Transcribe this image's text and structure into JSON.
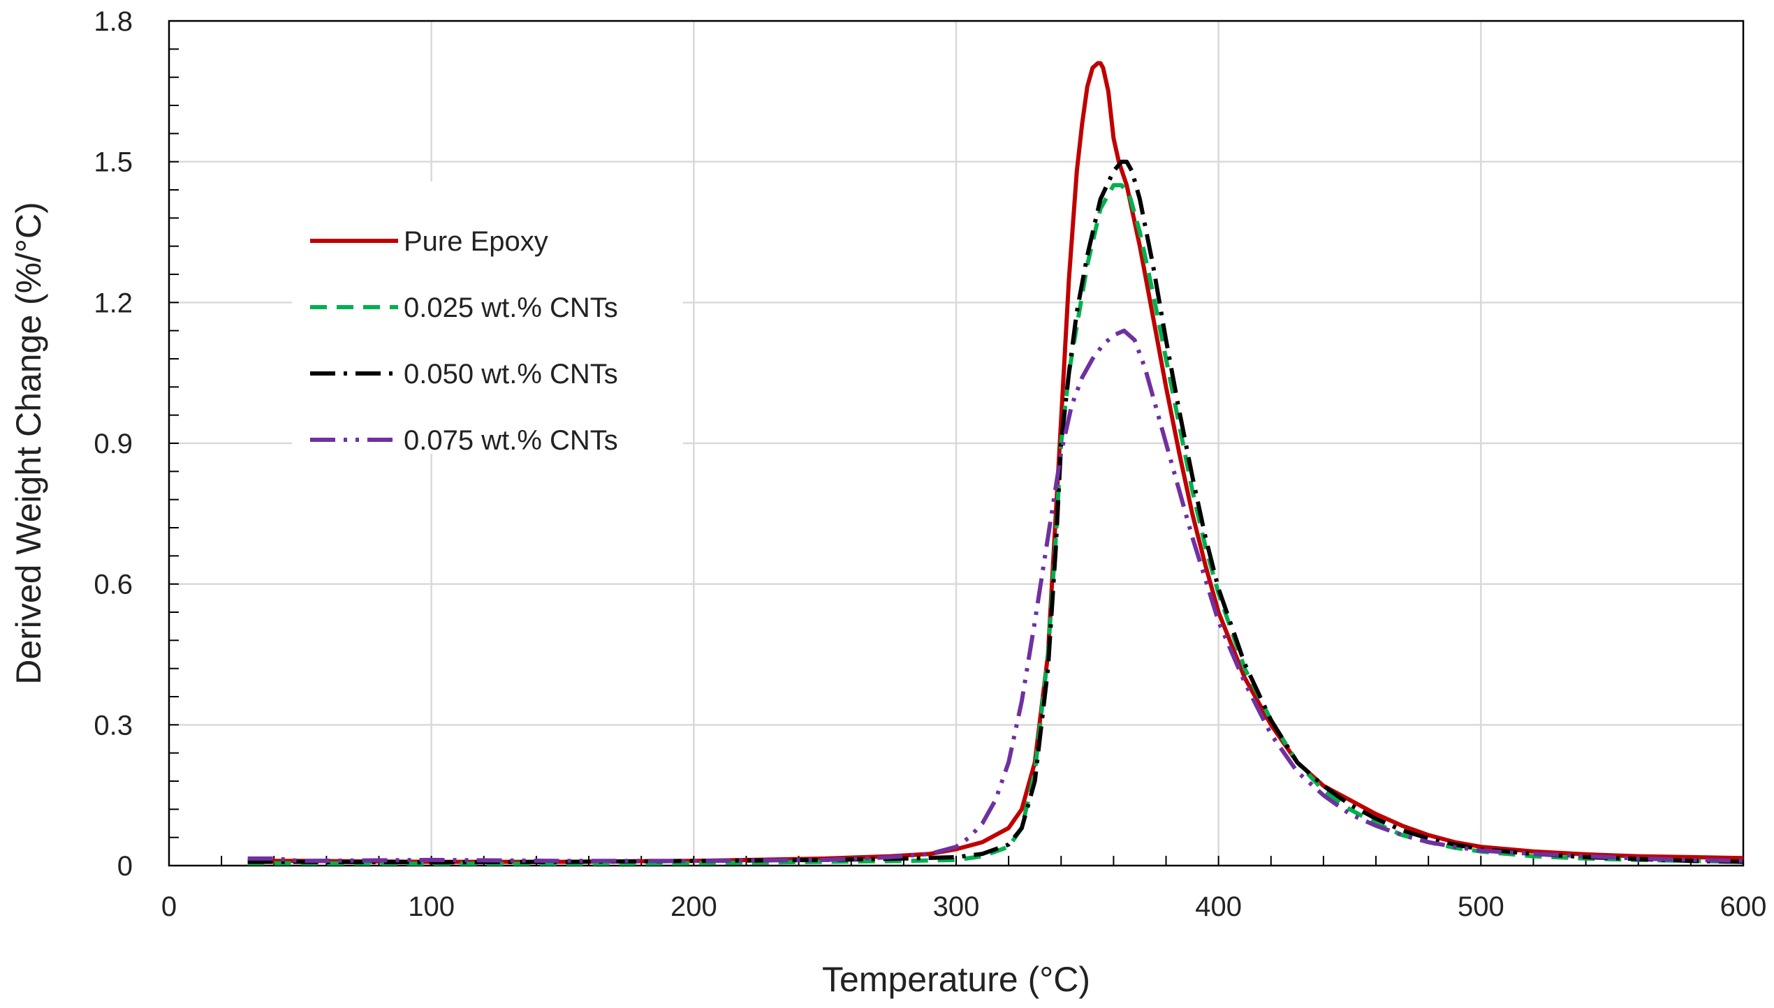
{
  "chart_data": {
    "type": "line",
    "title": "",
    "xlabel": "Temperature (°C)",
    "ylabel": "Derived Weight Change (%/°C)",
    "xlim": [
      0,
      600
    ],
    "ylim": [
      0,
      1.8
    ],
    "x_ticks": [
      0,
      100,
      200,
      300,
      400,
      500,
      600
    ],
    "y_ticks": [
      0,
      0.3,
      0.6,
      0.9,
      1.2,
      1.5,
      1.8
    ],
    "x_tick_labels": [
      "0",
      "100",
      "200",
      "300",
      "400",
      "500",
      "600"
    ],
    "y_tick_labels": [
      "0",
      "0.3",
      "0.6",
      "0.9",
      "1.2",
      "1.5",
      "1.8"
    ],
    "grid": true,
    "legend_position": "upper-left",
    "series": [
      {
        "name": "Pure Epoxy",
        "color": "#C00000",
        "dash": "solid",
        "x": [
          30,
          50,
          100,
          150,
          200,
          250,
          275,
          290,
          300,
          310,
          320,
          325,
          330,
          335,
          340,
          343,
          346,
          348,
          350,
          352,
          354,
          355,
          356,
          358,
          360,
          362,
          365,
          370,
          375,
          380,
          385,
          390,
          395,
          400,
          410,
          420,
          430,
          440,
          450,
          460,
          470,
          480,
          490,
          500,
          520,
          540,
          560,
          580,
          600
        ],
        "y": [
          0.01,
          0.01,
          0.008,
          0.008,
          0.01,
          0.015,
          0.02,
          0.025,
          0.035,
          0.05,
          0.08,
          0.12,
          0.22,
          0.45,
          0.95,
          1.25,
          1.48,
          1.58,
          1.66,
          1.7,
          1.71,
          1.71,
          1.7,
          1.65,
          1.55,
          1.5,
          1.45,
          1.32,
          1.17,
          1.02,
          0.88,
          0.75,
          0.64,
          0.54,
          0.4,
          0.3,
          0.22,
          0.17,
          0.14,
          0.11,
          0.085,
          0.065,
          0.05,
          0.04,
          0.03,
          0.024,
          0.02,
          0.018,
          0.016
        ]
      },
      {
        "name": "0.025 wt.% CNTs",
        "color": "#00B050",
        "dash": "dash",
        "x": [
          30,
          50,
          100,
          150,
          200,
          250,
          280,
          300,
          310,
          320,
          325,
          330,
          335,
          338,
          340,
          343,
          346,
          350,
          355,
          360,
          363,
          366,
          370,
          375,
          380,
          385,
          390,
          395,
          400,
          410,
          420,
          430,
          440,
          450,
          460,
          470,
          480,
          490,
          500,
          520,
          540,
          560,
          580,
          600
        ],
        "y": [
          0.005,
          0.005,
          0.004,
          0.004,
          0.005,
          0.008,
          0.01,
          0.012,
          0.02,
          0.04,
          0.08,
          0.2,
          0.45,
          0.7,
          0.9,
          1.05,
          1.15,
          1.28,
          1.4,
          1.45,
          1.45,
          1.43,
          1.35,
          1.22,
          1.08,
          0.94,
          0.8,
          0.68,
          0.58,
          0.42,
          0.31,
          0.22,
          0.16,
          0.12,
          0.09,
          0.065,
          0.05,
          0.038,
          0.03,
          0.02,
          0.015,
          0.012,
          0.01,
          0.008
        ]
      },
      {
        "name": "0.050 wt.% CNTs",
        "color": "#000000",
        "dash": "dashdot",
        "x": [
          30,
          50,
          100,
          150,
          200,
          250,
          280,
          300,
          310,
          320,
          325,
          330,
          335,
          338,
          340,
          343,
          346,
          350,
          355,
          360,
          363,
          365,
          367,
          370,
          375,
          380,
          385,
          390,
          395,
          400,
          410,
          420,
          430,
          440,
          450,
          460,
          470,
          480,
          490,
          500,
          520,
          540,
          560,
          580,
          600
        ],
        "y": [
          0.008,
          0.008,
          0.007,
          0.008,
          0.01,
          0.012,
          0.015,
          0.018,
          0.025,
          0.045,
          0.08,
          0.18,
          0.42,
          0.68,
          0.9,
          1.05,
          1.18,
          1.3,
          1.42,
          1.48,
          1.5,
          1.5,
          1.48,
          1.42,
          1.28,
          1.12,
          0.97,
          0.83,
          0.7,
          0.59,
          0.43,
          0.31,
          0.22,
          0.17,
          0.13,
          0.1,
          0.075,
          0.058,
          0.045,
          0.035,
          0.025,
          0.018,
          0.014,
          0.01,
          0.008
        ]
      },
      {
        "name": "0.075 wt.% CNTs",
        "color": "#7030A0",
        "dash": "dashdotdot",
        "x": [
          30,
          40,
          50,
          100,
          150,
          200,
          250,
          275,
          290,
          300,
          305,
          310,
          315,
          320,
          325,
          330,
          335,
          340,
          344,
          348,
          352,
          356,
          360,
          364,
          368,
          372,
          376,
          380,
          385,
          390,
          395,
          400,
          410,
          420,
          430,
          440,
          450,
          460,
          470,
          480,
          490,
          500,
          520,
          540,
          560,
          580,
          600
        ],
        "y": [
          0.015,
          0.015,
          0.01,
          0.012,
          0.01,
          0.01,
          0.012,
          0.018,
          0.025,
          0.04,
          0.06,
          0.09,
          0.14,
          0.22,
          0.35,
          0.52,
          0.7,
          0.88,
          0.98,
          1.04,
          1.08,
          1.11,
          1.13,
          1.14,
          1.12,
          1.06,
          0.98,
          0.9,
          0.8,
          0.7,
          0.61,
          0.52,
          0.39,
          0.28,
          0.2,
          0.15,
          0.11,
          0.085,
          0.065,
          0.05,
          0.04,
          0.032,
          0.025,
          0.02,
          0.015,
          0.012,
          0.01
        ]
      }
    ]
  }
}
